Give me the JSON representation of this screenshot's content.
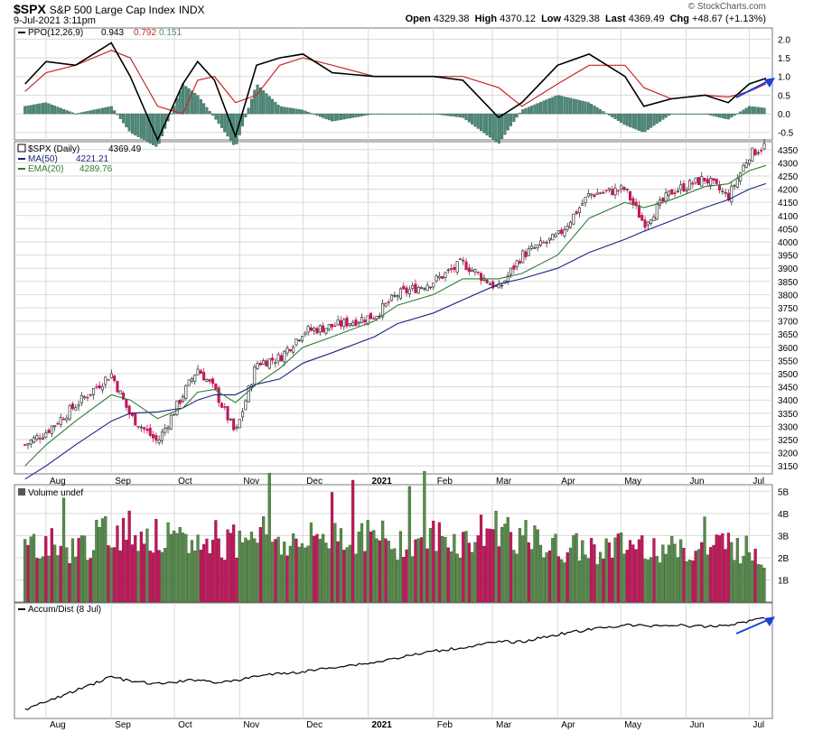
{
  "header": {
    "symbol": "$SPX",
    "name": "S&P 500 Large Cap Index",
    "exchange": "INDX",
    "datetime": "9-Jul-2021 3:11pm",
    "watermark": "© StockCharts.com",
    "open_label": "Open",
    "open": "4329.38",
    "high_label": "High",
    "high": "4370.12",
    "low_label": "Low",
    "low": "4329.38",
    "last_label": "Last",
    "last": "4369.49",
    "chg_label": "Chg",
    "chg": "+48.67 (+1.13%)"
  },
  "colors": {
    "up": "#5a8a4e",
    "down": "#c2185b",
    "ma50": "#1a237e",
    "ema20": "#2e7d32",
    "ppo": "#000000",
    "signal": "#c62828",
    "hist": "#4f8a7a",
    "arrow": "#1e40d8",
    "grid": "#d9d9d9"
  },
  "chart_data": [
    {
      "type": "line",
      "panel": "ppo",
      "legend": {
        "label": "PPO(12,26,9)",
        "ppo": "0.943",
        "signal": "0.792",
        "hist": "0.151"
      },
      "ylim": [
        -0.7,
        2.3
      ],
      "y_ticks": [
        "2.0",
        "1.5",
        "1.0",
        "0.5",
        "0.0",
        "-0.5"
      ],
      "x": [
        "2020-07-22",
        "2020-08-01",
        "2020-08-15",
        "2020-09-01",
        "2020-09-10",
        "2020-09-23",
        "2020-10-05",
        "2020-10-12",
        "2020-10-20",
        "2020-10-30",
        "2020-11-09",
        "2020-11-20",
        "2020-12-01",
        "2020-12-15",
        "2021-01-04",
        "2021-01-15",
        "2021-02-01",
        "2021-02-15",
        "2021-03-04",
        "2021-03-15",
        "2021-04-01",
        "2021-04-16",
        "2021-05-03",
        "2021-05-12",
        "2021-05-25",
        "2021-06-10",
        "2021-06-21",
        "2021-07-01",
        "2021-07-09"
      ],
      "series": [
        {
          "role": "ppo",
          "values": [
            0.8,
            1.4,
            1.3,
            1.9,
            1.0,
            -0.7,
            0.8,
            1.4,
            0.9,
            -0.6,
            1.3,
            1.5,
            1.6,
            1.1,
            1.0,
            1.0,
            1.0,
            0.9,
            -0.1,
            0.3,
            1.3,
            1.6,
            1.0,
            0.2,
            0.4,
            0.5,
            0.3,
            0.8,
            0.95
          ]
        },
        {
          "role": "signal",
          "values": [
            0.6,
            1.1,
            1.3,
            1.7,
            1.5,
            0.2,
            0.0,
            0.9,
            1.0,
            0.3,
            0.5,
            1.3,
            1.5,
            1.3,
            1.0,
            1.0,
            1.0,
            1.0,
            0.7,
            0.2,
            0.8,
            1.3,
            1.3,
            0.7,
            0.4,
            0.5,
            0.45,
            0.6,
            0.8
          ]
        }
      ]
    },
    {
      "type": "candlestick",
      "panel": "price",
      "legend": {
        "symbol": "$SPX (Daily)",
        "last": "4369.49",
        "ma_label": "MA(50)",
        "ma": "4221.21",
        "ema_label": "EMA(20)",
        "ema": "4289.76"
      },
      "ylim": [
        3120,
        4380
      ],
      "y_ticks": [
        "4350",
        "4300",
        "4250",
        "4200",
        "4150",
        "4100",
        "4050",
        "4000",
        "3950",
        "3900",
        "3850",
        "3800",
        "3750",
        "3700",
        "3650",
        "3600",
        "3550",
        "3500",
        "3450",
        "3400",
        "3350",
        "3300",
        "3250",
        "3200",
        "3150"
      ],
      "x_ticks": [
        "Aug",
        "Sep",
        "Oct",
        "Nov",
        "Dec",
        "2021",
        "Feb",
        "Mar",
        "Apr",
        "May",
        "Jun",
        "Jul"
      ],
      "x": [
        "2020-07-22",
        "2020-08-01",
        "2020-08-15",
        "2020-09-01",
        "2020-09-10",
        "2020-09-23",
        "2020-10-05",
        "2020-10-12",
        "2020-10-20",
        "2020-10-30",
        "2020-11-09",
        "2020-11-20",
        "2020-12-01",
        "2020-12-15",
        "2021-01-04",
        "2021-01-15",
        "2021-02-01",
        "2021-02-15",
        "2021-03-04",
        "2021-03-15",
        "2021-04-01",
        "2021-04-16",
        "2021-05-03",
        "2021-05-12",
        "2021-05-25",
        "2021-06-10",
        "2021-06-21",
        "2021-07-01",
        "2021-07-09"
      ],
      "close": [
        3230,
        3280,
        3380,
        3500,
        3340,
        3240,
        3420,
        3520,
        3440,
        3270,
        3540,
        3560,
        3660,
        3680,
        3720,
        3800,
        3850,
        3920,
        3820,
        3950,
        4020,
        4180,
        4200,
        4070,
        4190,
        4240,
        4170,
        4330,
        4369
      ],
      "ma50": [
        3100,
        3150,
        3230,
        3320,
        3350,
        3355,
        3370,
        3400,
        3420,
        3420,
        3460,
        3480,
        3540,
        3580,
        3640,
        3690,
        3730,
        3780,
        3840,
        3860,
        3900,
        3960,
        4010,
        4040,
        4080,
        4130,
        4160,
        4200,
        4221
      ],
      "ema20": [
        3150,
        3230,
        3320,
        3420,
        3400,
        3330,
        3370,
        3430,
        3440,
        3390,
        3460,
        3520,
        3600,
        3640,
        3700,
        3760,
        3800,
        3860,
        3860,
        3880,
        3950,
        4090,
        4150,
        4130,
        4160,
        4210,
        4220,
        4270,
        4290
      ]
    },
    {
      "type": "bar",
      "panel": "volume",
      "legend": {
        "label": "Volume undef"
      },
      "ylim": [
        0,
        5300000000
      ],
      "y_ticks": [
        "5B",
        "4B",
        "3B",
        "2B",
        "1B"
      ],
      "x": [
        "2020-07-22",
        "2020-08-01",
        "2020-08-15",
        "2020-09-01",
        "2020-09-10",
        "2020-09-23",
        "2020-10-05",
        "2020-10-12",
        "2020-10-20",
        "2020-10-30",
        "2020-11-09",
        "2020-11-20",
        "2020-12-01",
        "2020-12-15",
        "2021-01-04",
        "2021-01-15",
        "2021-02-01",
        "2021-02-15",
        "2021-03-04",
        "2021-03-15",
        "2021-04-01",
        "2021-04-16",
        "2021-05-03",
        "2021-05-12",
        "2021-05-25",
        "2021-06-10",
        "2021-06-21",
        "2021-07-01",
        "2021-07-09"
      ],
      "values": [
        2600000000,
        2700000000,
        2400000000,
        3200000000,
        3300000000,
        2900000000,
        2600000000,
        2700000000,
        2500000000,
        2800000000,
        3500000000,
        2700000000,
        2600000000,
        3200000000,
        2900000000,
        2700000000,
        3000000000,
        2700000000,
        3500000000,
        2900000000,
        2400000000,
        2400000000,
        2500000000,
        2700000000,
        2300000000,
        2400000000,
        2700000000,
        2300000000,
        2100000000
      ]
    },
    {
      "type": "line",
      "panel": "accum-dist",
      "legend": {
        "label": "Accum/Dist (8 Jul)"
      },
      "x": [
        "2020-07-22",
        "2020-08-01",
        "2020-08-15",
        "2020-09-01",
        "2020-09-10",
        "2020-09-23",
        "2020-10-05",
        "2020-10-12",
        "2020-10-20",
        "2020-10-30",
        "2020-11-09",
        "2020-11-20",
        "2020-12-01",
        "2020-12-15",
        "2021-01-04",
        "2021-01-15",
        "2021-02-01",
        "2021-02-15",
        "2021-03-04",
        "2021-03-15",
        "2021-04-01",
        "2021-04-16",
        "2021-05-03",
        "2021-05-12",
        "2021-05-25",
        "2021-06-10",
        "2021-06-21",
        "2021-07-01",
        "2021-07-09"
      ],
      "values": [
        0.0,
        0.08,
        0.2,
        0.35,
        0.3,
        0.27,
        0.3,
        0.32,
        0.29,
        0.3,
        0.36,
        0.38,
        0.4,
        0.45,
        0.5,
        0.55,
        0.62,
        0.66,
        0.72,
        0.72,
        0.8,
        0.85,
        0.9,
        0.89,
        0.9,
        0.88,
        0.9,
        0.94,
        0.99
      ]
    }
  ]
}
